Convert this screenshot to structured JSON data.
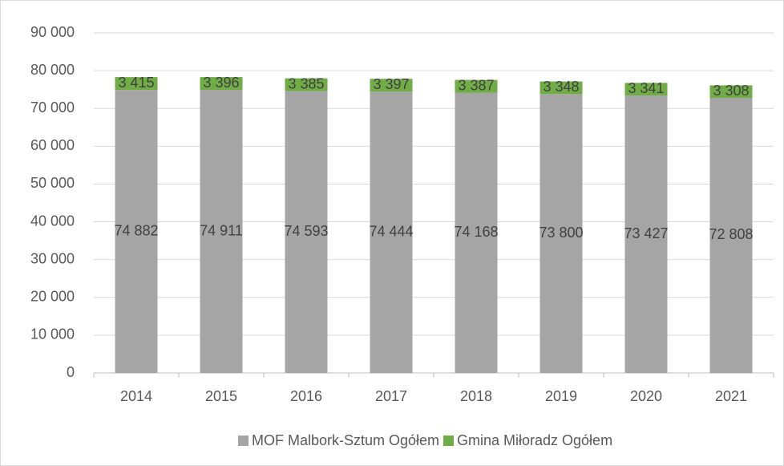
{
  "chart_data": {
    "type": "stacked_bar",
    "categories": [
      "2014",
      "2015",
      "2016",
      "2017",
      "2018",
      "2019",
      "2020",
      "2021"
    ],
    "series": [
      {
        "name": "MOF Malbork-Sztum Ogółem",
        "color": "#a5a5a5",
        "values": [
          74882,
          74911,
          74593,
          74444,
          74168,
          73800,
          73427,
          72808
        ],
        "value_labels": [
          "74 882",
          "74 911",
          "74 593",
          "74 444",
          "74 168",
          "73 800",
          "73 427",
          "72 808"
        ]
      },
      {
        "name": "Gmina Miłoradz Ogółem",
        "color": "#70ad47",
        "values": [
          3415,
          3396,
          3385,
          3397,
          3387,
          3348,
          3341,
          3308
        ],
        "value_labels": [
          "3 415",
          "3 396",
          "3 385",
          "3 397",
          "3 387",
          "3 348",
          "3 341",
          "3 308"
        ]
      }
    ],
    "ylim": [
      0,
      90000
    ],
    "yticks": [
      0,
      {
        "value": 10000,
        "label": "10 000"
      },
      {
        "value": 20000,
        "label": "20 000"
      },
      {
        "value": 30000,
        "label": "30 000"
      },
      {
        "value": 40000,
        "label": "40 000"
      },
      {
        "value": 50000,
        "label": "50 000"
      },
      {
        "value": 60000,
        "label": "60 000"
      },
      {
        "value": 70000,
        "label": "70 000"
      },
      {
        "value": 80000,
        "label": "80 000"
      },
      {
        "value": 90000,
        "label": "90 000"
      }
    ],
    "grid": true,
    "legend": "bottom"
  }
}
